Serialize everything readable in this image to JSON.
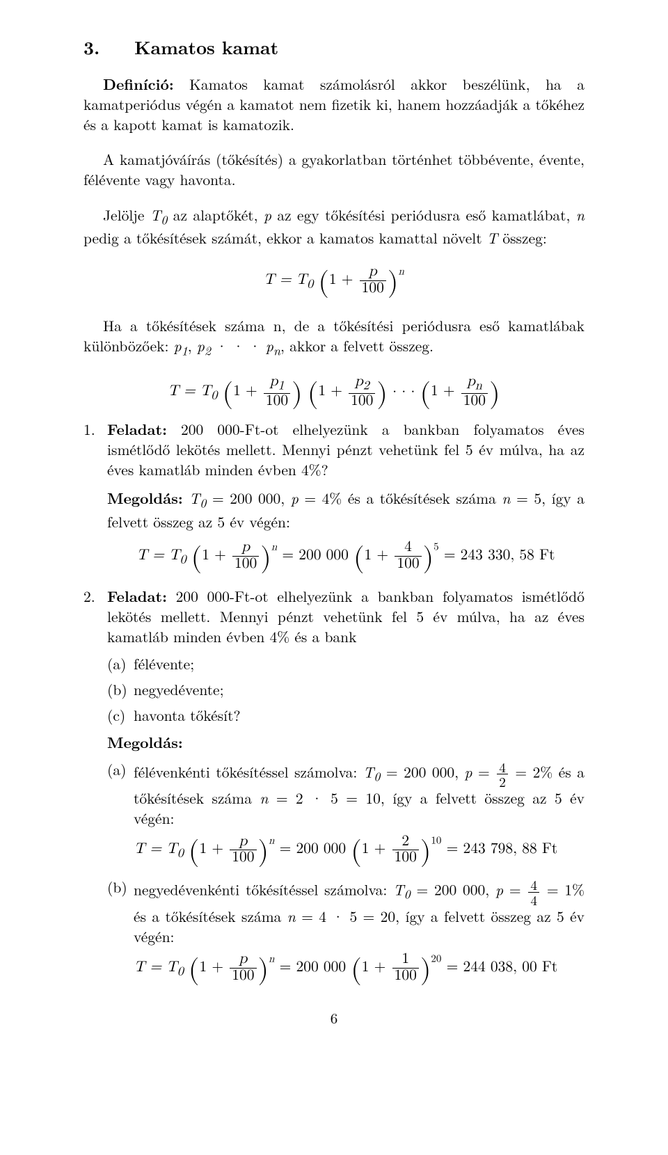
{
  "section": {
    "number": "3.",
    "title": "Kamatos kamat"
  },
  "def": {
    "label": "Definíció:",
    "text": " Kamatos kamat számolásról akkor beszélünk, ha a kamatperiódus végén a kamatot nem fizetik ki, hanem hozzáadják a tőkéhez és a kapott kamat is kamatozik."
  },
  "p2": "A kamatjóváírás (tőkésítés) a gyakorlatban történhet többévente, évente, félévente vagy havonta.",
  "p3": {
    "pre": "Jelölje ",
    "t0": "T",
    "t0sub": "0",
    "mid1": " az alaptőkét, ",
    "p": "p",
    "mid2": " az egy tőkésítési periódusra eső kamatlábat, ",
    "n": "n",
    "mid3": " pedig a tőkésítések számát, ekkor a kamatos kamattal növelt ",
    "T": "T",
    "end": " összeg:"
  },
  "formula1": {
    "lhs": "T = T",
    "sub": "0",
    "paren_l": "(",
    "one_plus": "1 +",
    "frac_num": "p",
    "frac_den": "100",
    "paren_r": ")",
    "exp": "n"
  },
  "p4": {
    "pre": "Ha a tőkésítések száma n, de a tőkésítési periódusra eső kamatlábak különbözőek: ",
    "vars": "p",
    "s1": "1",
    "comma": ", ",
    "s2": "2",
    "dots": " · · · ",
    "sn": "n",
    "end": ", akkor a felvett összeg."
  },
  "formula2": {
    "lhs": "T = T",
    "sub": "0",
    "p1_num": "p",
    "p1_sub": "1",
    "den": "100",
    "p2_num": "p",
    "p2_sub": "2",
    "pn_num": "p",
    "pn_sub": "n",
    "dots": "· · ·"
  },
  "tasks": [
    {
      "marker": "1.",
      "label": "Feladat:",
      "q": " 200 000-Ft-ot elhelyezünk a bankban folyamatos éves ismétlődő lekötés mellett. Mennyi pénzt vehetünk fel 5 év múlva, ha az éves kamatláb minden évben 4%?",
      "m_label": "Megoldás:",
      "m_text_a": " T",
      "m_text_b": " = 200 000, ",
      "m_text_c": " = 4% és a tőkésítések száma ",
      "m_text_d": " = 5, így a felvett összeg az 5 év végén:",
      "eq": {
        "mid": " = 200 000 ",
        "frac_num": "4",
        "frac_den": "100",
        "exp": "5",
        "res": " = 243 330, 58 Ft"
      }
    },
    {
      "marker": "2.",
      "label": "Feladat:",
      "q": " 200 000-Ft-ot elhelyezünk a bankban folyamatos ismétlődő lekötés mellett. Mennyi pénzt vehetünk fel 5 év múlva, ha az éves kamatláb minden évben 4% és a bank",
      "subs": [
        {
          "marker": "(a)",
          "text": "félévente;"
        },
        {
          "marker": "(b)",
          "text": "negyedévente;"
        },
        {
          "marker": "(c)",
          "text": "havonta tőkésít?"
        }
      ],
      "m_label": "Megoldás:",
      "sols": [
        {
          "marker": "(a)",
          "pre": "félévenkénti tőkésítéssel számolva: ",
          "p": " = ",
          "frac_num": "4",
          "frac_den": "2",
          "p2": " = 2% és a tőkésítések száma ",
          "n_eq": " = 2 · 5 = 10, így a felvett összeg az 5 év végén:",
          "eq": {
            "mid": " = 200 000 ",
            "num": "2",
            "den": "100",
            "exp": "10",
            "res": " = 243 798, 88 Ft"
          }
        },
        {
          "marker": "(b)",
          "pre": "negyedévenkénti tőkésítéssel számolva: ",
          "p": " = ",
          "frac_num": "4",
          "frac_den": "4",
          "p2": " = 1% és a tőkésítések száma ",
          "n_eq": " = 4 · 5 = 20, így a felvett összeg az 5 év végén:",
          "eq": {
            "mid": " = 200 000 ",
            "num": "1",
            "den": "100",
            "exp": "20",
            "res": " = 244 038, 00 Ft"
          }
        }
      ]
    }
  ],
  "pagenum": "6",
  "vars": {
    "T0": "T",
    "sub0": "0",
    "p": "p",
    "n": "n"
  }
}
